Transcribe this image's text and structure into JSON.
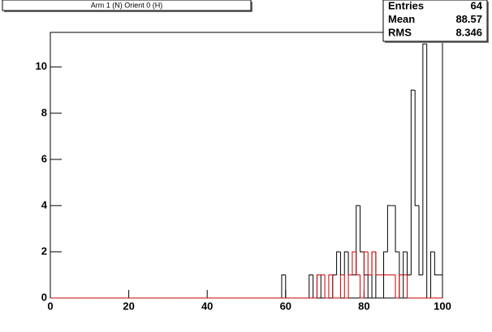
{
  "chart_data": {
    "type": "histogram",
    "title": "Arm 1 (N) Orient 0 (H)",
    "stats": {
      "labels": [
        "Entries",
        "Mean",
        "RMS"
      ],
      "values": [
        64,
        88.57,
        8.346
      ]
    },
    "bins": [
      0,
      1,
      2,
      3,
      4,
      5,
      6,
      7,
      8,
      9,
      10,
      11,
      12,
      13,
      14,
      15,
      16,
      17,
      18,
      19,
      20,
      21,
      22,
      23,
      24,
      25,
      26,
      27,
      28,
      29,
      30,
      31,
      32,
      33,
      34,
      35,
      36,
      37,
      38,
      39,
      40,
      41,
      42,
      43,
      44,
      45,
      46,
      47,
      48,
      49,
      50,
      51,
      52,
      53,
      54,
      55,
      56,
      57,
      58,
      59,
      60,
      61,
      62,
      63,
      64,
      65,
      66,
      67,
      68,
      69,
      70,
      71,
      72,
      73,
      74,
      75,
      76,
      77,
      78,
      79,
      80,
      81,
      82,
      83,
      84,
      85,
      86,
      87,
      88,
      89,
      90,
      91,
      92,
      93,
      94,
      95,
      96,
      97,
      98,
      99,
      100
    ],
    "series": [
      {
        "color": "#000000",
        "values": [
          0,
          0,
          0,
          0,
          0,
          0,
          0,
          0,
          0,
          0,
          0,
          0,
          0,
          0,
          0,
          0,
          0,
          0,
          0,
          0,
          0,
          0,
          0,
          0,
          0,
          0,
          0,
          0,
          0,
          0,
          0,
          0,
          0,
          0,
          0,
          0,
          0,
          0,
          0,
          0,
          0,
          0,
          0,
          0,
          0,
          0,
          0,
          0,
          0,
          0,
          0,
          0,
          0,
          0,
          0,
          0,
          0,
          0,
          0,
          1,
          0,
          0,
          0,
          0,
          0,
          0,
          1,
          0,
          1,
          0,
          0,
          0,
          1,
          2,
          1,
          2,
          1,
          1,
          4,
          2,
          1,
          0,
          2,
          0,
          0,
          2,
          4,
          4,
          2,
          0,
          2,
          1,
          9,
          4,
          1,
          11,
          0,
          2,
          1,
          1
        ]
      },
      {
        "color": "#cc0000",
        "values": [
          0,
          0,
          0,
          0,
          0,
          0,
          0,
          0,
          0,
          0,
          0,
          0,
          0,
          0,
          0,
          0,
          0,
          0,
          0,
          0,
          0,
          0,
          0,
          0,
          0,
          0,
          0,
          0,
          0,
          0,
          0,
          0,
          0,
          0,
          0,
          0,
          0,
          0,
          0,
          0,
          0,
          0,
          0,
          0,
          0,
          0,
          0,
          0,
          0,
          0,
          0,
          0,
          0,
          0,
          0,
          0,
          0,
          0,
          0,
          0,
          0,
          0,
          0,
          0,
          0,
          0,
          0,
          0,
          1,
          1,
          0,
          1,
          0,
          0,
          1,
          0,
          1,
          2,
          1,
          0,
          2,
          1,
          2,
          1,
          1,
          1,
          1,
          1,
          0,
          1,
          1,
          0,
          0,
          0,
          0,
          0,
          0,
          0,
          0,
          0
        ]
      }
    ],
    "xlim": [
      0,
      100
    ],
    "xticks": [
      0,
      20,
      40,
      60,
      80,
      100
    ],
    "ylim": [
      0,
      11.5
    ],
    "yticks": [
      0,
      2,
      4,
      6,
      8,
      10
    ]
  }
}
